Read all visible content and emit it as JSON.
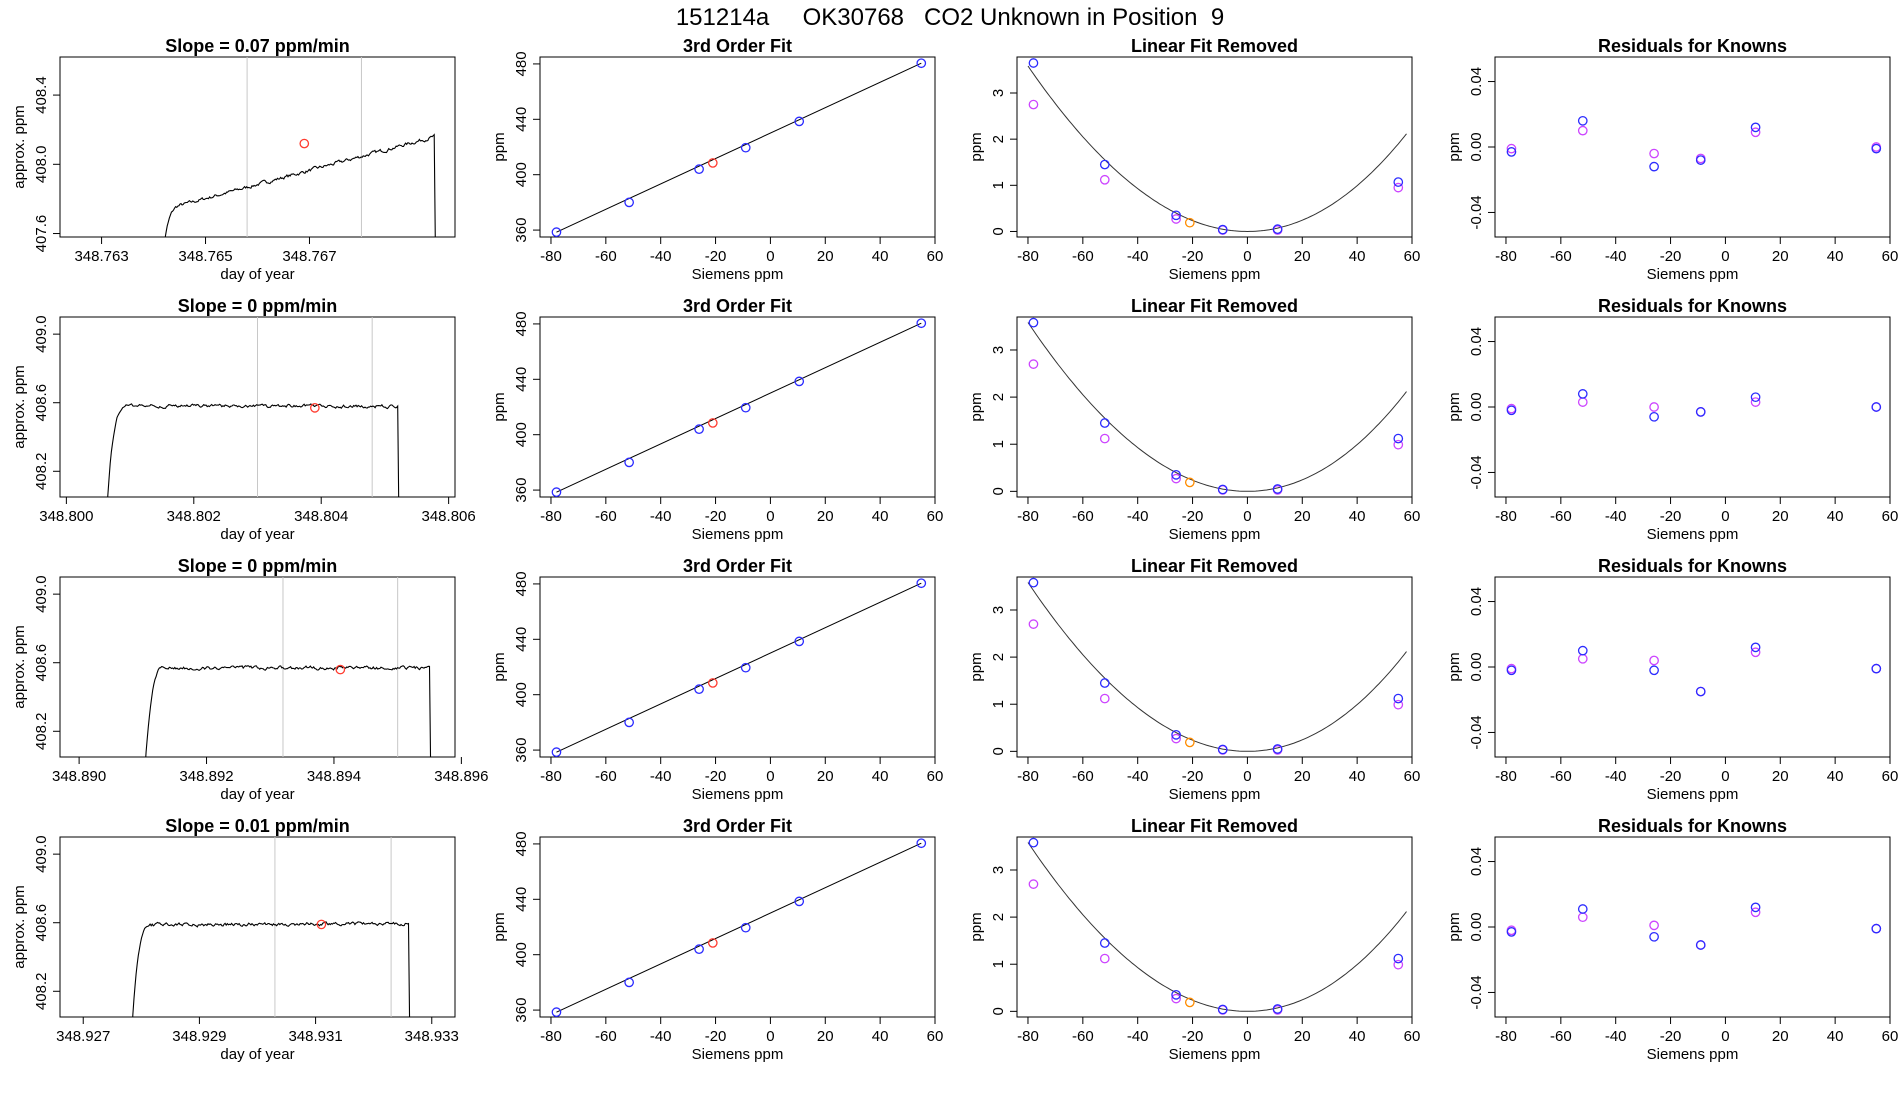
{
  "header": {
    "title": "151214a     OK30768   CO2 Unknown in Position  9"
  },
  "colors": {
    "known": "#2b2bff",
    "unknown_fit": "#ff3b2f",
    "unknown_lin": "#ff8c00",
    "alt": "#cc44ff",
    "trace": "#000000",
    "marker_line": "#c8c8c8"
  },
  "chart_data": [
    {
      "type": "line",
      "panel": "trace",
      "row": 0,
      "title": "Slope =  0.07  ppm/min",
      "xlabel": "day of year",
      "ylabel": "approx. ppm",
      "xlim": [
        348.7622,
        348.7698
      ],
      "ylim": [
        407.58,
        408.62
      ],
      "xticks": [
        348.763,
        348.765,
        348.767
      ],
      "xtick_labels": [
        "348.763",
        "348.765",
        "348.767"
      ],
      "yticks": [
        407.6,
        408.0,
        408.4
      ],
      "ytick_labels": [
        "407.6",
        "408.0",
        "408.4"
      ],
      "start": 348.7641,
      "level": 407.88,
      "drift": 0.43,
      "end": 348.7694,
      "vlines": [
        348.7658,
        348.768
      ],
      "marker": [
        348.7669,
        408.12
      ]
    },
    {
      "type": "scatter",
      "panel": "fit",
      "row": 0,
      "title": "3rd Order Fit",
      "xlabel": "Siemens ppm",
      "ylabel": "ppm",
      "xlim": [
        -84,
        60
      ],
      "ylim": [
        355,
        485
      ],
      "xticks": [
        -80,
        -60,
        -40,
        -20,
        0,
        20,
        40,
        60
      ],
      "yticks": [
        360,
        400,
        440,
        480
      ],
      "known": [
        [
          -78,
          358.5
        ],
        [
          -51.5,
          380
        ],
        [
          -26,
          404
        ],
        [
          -9,
          419.5
        ],
        [
          10.5,
          438.5
        ],
        [
          55,
          480.5
        ]
      ],
      "unknown": [
        -21,
        408.5
      ],
      "line": [
        [
          -78,
          358.5
        ],
        [
          55,
          480.5
        ]
      ]
    },
    {
      "type": "scatter",
      "panel": "linfit",
      "row": 0,
      "title": "Linear Fit Removed",
      "xlabel": "Siemens ppm",
      "ylabel": "ppm",
      "xlim": [
        -84,
        60
      ],
      "ylim": [
        -0.12,
        3.78
      ],
      "xticks": [
        -80,
        -60,
        -40,
        -20,
        0,
        20,
        40,
        60
      ],
      "yticks": [
        0,
        1,
        2,
        3
      ],
      "known": [
        [
          -78,
          3.65
        ],
        [
          -52,
          1.45
        ],
        [
          -26,
          0.35
        ],
        [
          -9,
          0.04
        ],
        [
          11,
          0.05
        ],
        [
          55,
          1.07
        ]
      ],
      "alt": [
        [
          -78,
          2.75
        ],
        [
          -52,
          1.12
        ],
        [
          -26,
          0.27
        ],
        [
          -9,
          0.03
        ],
        [
          11,
          0.03
        ],
        [
          55,
          0.95
        ]
      ],
      "unknown": [
        -21,
        0.19
      ],
      "curve": [
        0,
        0.0006,
        5e-07
      ]
    },
    {
      "type": "scatter",
      "panel": "resid",
      "row": 0,
      "title": "Residuals for Knowns",
      "xlabel": "Siemens ppm",
      "ylabel": "ppm",
      "xlim": [
        -84,
        60
      ],
      "ylim": [
        -0.055,
        0.055
      ],
      "xticks": [
        -80,
        -60,
        -40,
        -20,
        0,
        20,
        40,
        60
      ],
      "yticks": [
        -0.04,
        0,
        0.04
      ],
      "ytick_labels": [
        "-0.04",
        "0.00",
        "0.04"
      ],
      "known": [
        [
          -78,
          -0.003
        ],
        [
          -52,
          0.016
        ],
        [
          -26,
          -0.012
        ],
        [
          -9,
          -0.008
        ],
        [
          11,
          0.012
        ],
        [
          55,
          -0.001
        ]
      ],
      "alt": [
        [
          -78,
          -0.001
        ],
        [
          -52,
          0.01
        ],
        [
          -26,
          -0.004
        ],
        [
          -9,
          -0.007
        ],
        [
          11,
          0.009
        ],
        [
          55,
          0.0
        ]
      ]
    },
    {
      "type": "line",
      "panel": "trace",
      "row": 1,
      "title": "Slope =  0  ppm/min",
      "xlabel": "day of year",
      "ylabel": "approx. ppm",
      "xlim": [
        348.7999,
        348.8061
      ],
      "ylim": [
        408.05,
        409.1
      ],
      "xticks": [
        348.8,
        348.802,
        348.804,
        348.806
      ],
      "xtick_labels": [
        "348.800",
        "348.802",
        "348.804",
        "348.806"
      ],
      "yticks": [
        408.2,
        408.6,
        409.0
      ],
      "ytick_labels": [
        "408.2",
        "408.6",
        "409.0"
      ],
      "start": 348.8006,
      "level": 408.58,
      "drift": 0.0,
      "end": 348.8052,
      "vlines": [
        348.803,
        348.8048
      ],
      "marker": [
        348.8039,
        408.57
      ]
    },
    {
      "type": "scatter",
      "panel": "fit",
      "row": 1,
      "title": "3rd Order Fit",
      "xlabel": "Siemens ppm",
      "ylabel": "ppm",
      "xlim": [
        -84,
        60
      ],
      "ylim": [
        355,
        485
      ],
      "xticks": [
        -80,
        -60,
        -40,
        -20,
        0,
        20,
        40,
        60
      ],
      "yticks": [
        360,
        400,
        440,
        480
      ],
      "known": [
        [
          -78,
          358.5
        ],
        [
          -51.5,
          380
        ],
        [
          -26,
          404
        ],
        [
          -9,
          419.5
        ],
        [
          10.5,
          438.5
        ],
        [
          55,
          480.5
        ]
      ],
      "unknown": [
        -21,
        408.5
      ],
      "line": [
        [
          -78,
          358.5
        ],
        [
          55,
          480.5
        ]
      ]
    },
    {
      "type": "scatter",
      "panel": "linfit",
      "row": 1,
      "title": "Linear Fit Removed",
      "xlabel": "Siemens ppm",
      "ylabel": "ppm",
      "xlim": [
        -84,
        60
      ],
      "ylim": [
        -0.12,
        3.7
      ],
      "xticks": [
        -80,
        -60,
        -40,
        -20,
        0,
        20,
        40,
        60
      ],
      "yticks": [
        0,
        1,
        2,
        3
      ],
      "known": [
        [
          -78,
          3.58
        ],
        [
          -52,
          1.45
        ],
        [
          -26,
          0.35
        ],
        [
          -9,
          0.04
        ],
        [
          11,
          0.05
        ],
        [
          55,
          1.12
        ]
      ],
      "alt": [
        [
          -78,
          2.7
        ],
        [
          -52,
          1.12
        ],
        [
          -26,
          0.27
        ],
        [
          -9,
          0.03
        ],
        [
          11,
          0.03
        ],
        [
          55,
          0.99
        ]
      ],
      "unknown": [
        -21,
        0.19
      ],
      "curve": [
        0,
        0.0006,
        5e-07
      ]
    },
    {
      "type": "scatter",
      "panel": "resid",
      "row": 1,
      "title": "Residuals for Knowns",
      "xlabel": "Siemens ppm",
      "ylabel": "ppm",
      "xlim": [
        -84,
        60
      ],
      "ylim": [
        -0.055,
        0.055
      ],
      "xticks": [
        -80,
        -60,
        -40,
        -20,
        0,
        20,
        40,
        60
      ],
      "yticks": [
        -0.04,
        0,
        0.04
      ],
      "ytick_labels": [
        "-0.04",
        "0.00",
        "0.04"
      ],
      "known": [
        [
          -78,
          -0.002
        ],
        [
          -52,
          0.008
        ],
        [
          -26,
          -0.006
        ],
        [
          -9,
          -0.003
        ],
        [
          11,
          0.006
        ],
        [
          55,
          0.0
        ]
      ],
      "alt": [
        [
          -78,
          -0.001
        ],
        [
          -52,
          0.003
        ],
        [
          -26,
          0.0
        ],
        [
          -9,
          -0.003
        ],
        [
          11,
          0.003
        ],
        [
          55,
          0.0
        ]
      ]
    },
    {
      "type": "line",
      "panel": "trace",
      "row": 2,
      "title": "Slope =  0  ppm/min",
      "xlabel": "day of year",
      "ylabel": "approx. ppm",
      "xlim": [
        348.8897,
        348.8959
      ],
      "ylim": [
        408.05,
        409.1
      ],
      "xticks": [
        348.89,
        348.892,
        348.894,
        348.896
      ],
      "xtick_labels": [
        "348.890",
        "348.892",
        "348.894",
        "348.896"
      ],
      "yticks": [
        408.2,
        408.6,
        409.0
      ],
      "ytick_labels": [
        "408.2",
        "408.6",
        "409.0"
      ],
      "start": 348.891,
      "level": 408.57,
      "drift": 0.0,
      "end": 348.8955,
      "vlines": [
        348.8932,
        348.895
      ],
      "marker": [
        348.8941,
        408.56
      ]
    },
    {
      "type": "scatter",
      "panel": "fit",
      "row": 2,
      "title": "3rd Order Fit",
      "xlabel": "Siemens ppm",
      "ylabel": "ppm",
      "xlim": [
        -84,
        60
      ],
      "ylim": [
        355,
        485
      ],
      "xticks": [
        -80,
        -60,
        -40,
        -20,
        0,
        20,
        40,
        60
      ],
      "yticks": [
        360,
        400,
        440,
        480
      ],
      "known": [
        [
          -78,
          358.5
        ],
        [
          -51.5,
          380
        ],
        [
          -26,
          404
        ],
        [
          -9,
          419.5
        ],
        [
          10.5,
          438.5
        ],
        [
          55,
          480.5
        ]
      ],
      "unknown": [
        -21,
        408.5
      ],
      "line": [
        [
          -78,
          358.5
        ],
        [
          55,
          480.5
        ]
      ]
    },
    {
      "type": "scatter",
      "panel": "linfit",
      "row": 2,
      "title": "Linear Fit Removed",
      "xlabel": "Siemens ppm",
      "ylabel": "ppm",
      "xlim": [
        -84,
        60
      ],
      "ylim": [
        -0.12,
        3.7
      ],
      "xticks": [
        -80,
        -60,
        -40,
        -20,
        0,
        20,
        40,
        60
      ],
      "yticks": [
        0,
        1,
        2,
        3
      ],
      "known": [
        [
          -78,
          3.58
        ],
        [
          -52,
          1.45
        ],
        [
          -26,
          0.35
        ],
        [
          -9,
          0.04
        ],
        [
          11,
          0.05
        ],
        [
          55,
          1.12
        ]
      ],
      "alt": [
        [
          -78,
          2.7
        ],
        [
          -52,
          1.12
        ],
        [
          -26,
          0.27
        ],
        [
          -9,
          0.03
        ],
        [
          11,
          0.03
        ],
        [
          55,
          0.99
        ]
      ],
      "unknown": [
        -21,
        0.19
      ],
      "curve": [
        0,
        0.0006,
        5e-07
      ]
    },
    {
      "type": "scatter",
      "panel": "resid",
      "row": 2,
      "title": "Residuals for Knowns",
      "xlabel": "Siemens ppm",
      "ylabel": "ppm",
      "xlim": [
        -84,
        60
      ],
      "ylim": [
        -0.055,
        0.055
      ],
      "xticks": [
        -80,
        -60,
        -40,
        -20,
        0,
        20,
        40,
        60
      ],
      "yticks": [
        -0.04,
        0,
        0.04
      ],
      "ytick_labels": [
        "-0.04",
        "0.00",
        "0.04"
      ],
      "known": [
        [
          -78,
          -0.002
        ],
        [
          -52,
          0.01
        ],
        [
          -26,
          -0.002
        ],
        [
          -9,
          -0.015
        ],
        [
          11,
          0.012
        ],
        [
          55,
          -0.001
        ]
      ],
      "alt": [
        [
          -78,
          -0.001
        ],
        [
          -52,
          0.005
        ],
        [
          -26,
          0.004
        ],
        [
          -9,
          -0.015
        ],
        [
          11,
          0.009
        ],
        [
          55,
          -0.001
        ]
      ]
    },
    {
      "type": "line",
      "panel": "trace",
      "row": 3,
      "title": "Slope =  0.01  ppm/min",
      "xlabel": "day of year",
      "ylabel": "approx. ppm",
      "xlim": [
        348.9266,
        348.9334
      ],
      "ylim": [
        408.05,
        409.1
      ],
      "xticks": [
        348.927,
        348.929,
        348.931,
        348.933
      ],
      "xtick_labels": [
        "348.927",
        "348.929",
        "348.931",
        "348.933"
      ],
      "yticks": [
        408.2,
        408.6,
        409.0
      ],
      "ytick_labels": [
        "408.2",
        "408.6",
        "409.0"
      ],
      "start": 348.9278,
      "level": 408.59,
      "drift": 0.01,
      "end": 348.9326,
      "vlines": [
        348.9303,
        348.9323
      ],
      "marker": [
        348.9311,
        408.59
      ]
    },
    {
      "type": "scatter",
      "panel": "fit",
      "row": 3,
      "title": "3rd Order Fit",
      "xlabel": "Siemens ppm",
      "ylabel": "ppm",
      "xlim": [
        -84,
        60
      ],
      "ylim": [
        355,
        485
      ],
      "xticks": [
        -80,
        -60,
        -40,
        -20,
        0,
        20,
        40,
        60
      ],
      "yticks": [
        360,
        400,
        440,
        480
      ],
      "known": [
        [
          -78,
          358.5
        ],
        [
          -51.5,
          380
        ],
        [
          -26,
          404
        ],
        [
          -9,
          419.5
        ],
        [
          10.5,
          438.5
        ],
        [
          55,
          480.5
        ]
      ],
      "unknown": [
        -21,
        408.5
      ],
      "line": [
        [
          -78,
          358.5
        ],
        [
          55,
          480.5
        ]
      ]
    },
    {
      "type": "scatter",
      "panel": "linfit",
      "row": 3,
      "title": "Linear Fit Removed",
      "xlabel": "Siemens ppm",
      "ylabel": "ppm",
      "xlim": [
        -84,
        60
      ],
      "ylim": [
        -0.12,
        3.7
      ],
      "xticks": [
        -80,
        -60,
        -40,
        -20,
        0,
        20,
        40,
        60
      ],
      "yticks": [
        0,
        1,
        2,
        3
      ],
      "known": [
        [
          -78,
          3.58
        ],
        [
          -52,
          1.45
        ],
        [
          -26,
          0.35
        ],
        [
          -9,
          0.04
        ],
        [
          11,
          0.05
        ],
        [
          55,
          1.12
        ]
      ],
      "alt": [
        [
          -78,
          2.7
        ],
        [
          -52,
          1.12
        ],
        [
          -26,
          0.27
        ],
        [
          -9,
          0.03
        ],
        [
          11,
          0.03
        ],
        [
          55,
          0.99
        ]
      ],
      "unknown": [
        -21,
        0.19
      ],
      "curve": [
        0,
        0.0006,
        5e-07
      ]
    },
    {
      "type": "scatter",
      "panel": "resid",
      "row": 3,
      "title": "Residuals for Knowns",
      "xlabel": "Siemens ppm",
      "ylabel": "ppm",
      "xlim": [
        -84,
        60
      ],
      "ylim": [
        -0.055,
        0.055
      ],
      "xticks": [
        -80,
        -60,
        -40,
        -20,
        0,
        20,
        40,
        60
      ],
      "yticks": [
        -0.04,
        0,
        0.04
      ],
      "ytick_labels": [
        "-0.04",
        "0.00",
        "0.04"
      ],
      "known": [
        [
          -78,
          -0.003
        ],
        [
          -52,
          0.011
        ],
        [
          -26,
          -0.006
        ],
        [
          -9,
          -0.011
        ],
        [
          11,
          0.012
        ],
        [
          55,
          -0.001
        ]
      ],
      "alt": [
        [
          -78,
          -0.002
        ],
        [
          -52,
          0.006
        ],
        [
          -26,
          0.001
        ],
        [
          -9,
          -0.011
        ],
        [
          11,
          0.009
        ],
        [
          55,
          -0.001
        ]
      ]
    }
  ]
}
